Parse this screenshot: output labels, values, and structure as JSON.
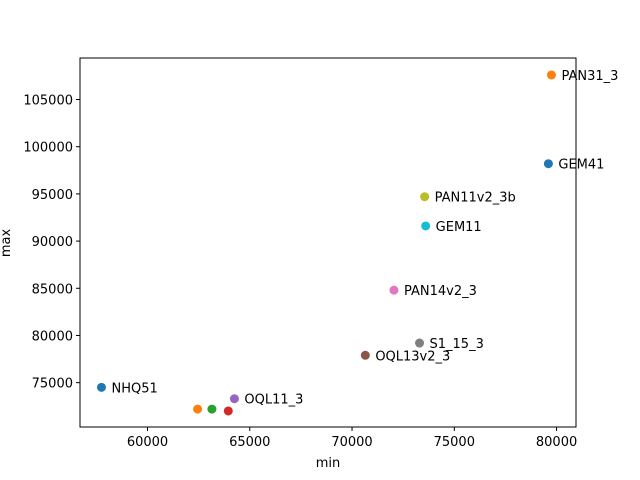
{
  "chart_data": {
    "type": "scatter",
    "xlabel": "min",
    "ylabel": "max",
    "xlim": [
      56700,
      80950
    ],
    "ylim": [
      70300,
      109400
    ],
    "xticks": [
      60000,
      65000,
      70000,
      75000,
      80000
    ],
    "yticks": [
      75000,
      80000,
      85000,
      90000,
      95000,
      100000,
      105000
    ],
    "grid": false,
    "points": [
      {
        "x": 57750,
        "y": 74500,
        "label": "NHQ51",
        "color": "#1f77b4"
      },
      {
        "x": 62450,
        "y": 72200,
        "label": "",
        "color": "#ff7f0e"
      },
      {
        "x": 63150,
        "y": 72200,
        "label": "",
        "color": "#2ca02c"
      },
      {
        "x": 63950,
        "y": 72000,
        "label": "",
        "color": "#d62728"
      },
      {
        "x": 64250,
        "y": 73300,
        "label": "OQL11_3",
        "color": "#9467bd"
      },
      {
        "x": 70650,
        "y": 77900,
        "label": "OQL13v2_3",
        "color": "#8c564b"
      },
      {
        "x": 72050,
        "y": 84800,
        "label": "PAN14v2_3",
        "color": "#e377c2"
      },
      {
        "x": 73300,
        "y": 79200,
        "label": "S1_15_3",
        "color": "#7f7f7f"
      },
      {
        "x": 73550,
        "y": 94700,
        "label": "PAN11v2_3b",
        "color": "#bcbd22"
      },
      {
        "x": 73600,
        "y": 91600,
        "label": "GEM11",
        "color": "#17becf"
      },
      {
        "x": 79600,
        "y": 98200,
        "label": "GEM41",
        "color": "#1f77b4"
      },
      {
        "x": 79750,
        "y": 107600,
        "label": "PAN31_3",
        "color": "#ff7f0e"
      }
    ]
  }
}
